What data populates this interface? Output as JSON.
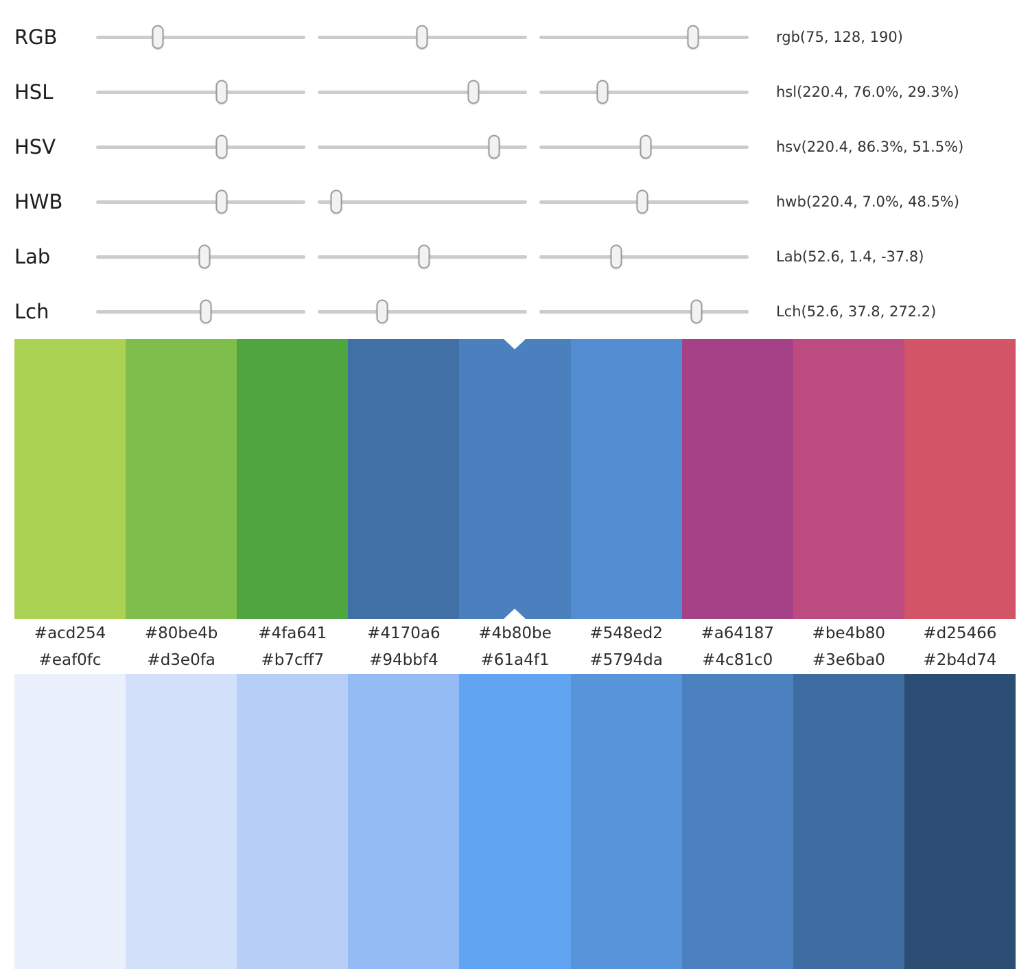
{
  "sliders": {
    "rows": [
      {
        "label": "RGB",
        "value": "rgb(75, 128, 190)",
        "thumbs": [
          "29.5%",
          "49.8%",
          "73.4%"
        ]
      },
      {
        "label": "HSL",
        "value": "hsl(220.4, 76.0%, 29.3%)",
        "thumbs": [
          "60.0%",
          "74.4%",
          "30.2%"
        ]
      },
      {
        "label": "HSV",
        "value": "hsv(220.4, 86.3%, 51.5%)",
        "thumbs": [
          "60.0%",
          "84.3%",
          "50.8%"
        ]
      },
      {
        "label": "HWB",
        "value": "hwb(220.4, 7.0%, 48.5%)",
        "thumbs": [
          "60.0%",
          "8.9%",
          "49.2%"
        ]
      },
      {
        "label": "Lab",
        "value": "Lab(52.6, 1.4, -37.8)",
        "thumbs": [
          "51.8%",
          "50.8%",
          "36.7%"
        ]
      },
      {
        "label": "Lch",
        "value": "Lch(52.6, 37.8, 272.2)",
        "thumbs": [
          "52.5%",
          "30.8%",
          "75.1%"
        ]
      }
    ]
  },
  "palette_top": {
    "selected_index": 4,
    "colors": [
      "#acd254",
      "#80be4b",
      "#4fa641",
      "#4170a6",
      "#4b80be",
      "#548ed2",
      "#a64187",
      "#be4b80",
      "#d25466"
    ]
  },
  "palette_bottom": {
    "colors": [
      "#eaf0fc",
      "#d3e0fa",
      "#b7cff7",
      "#94bbf4",
      "#61a4f1",
      "#5794da",
      "#4c81c0",
      "#3e6ba0",
      "#2b4d74"
    ]
  }
}
